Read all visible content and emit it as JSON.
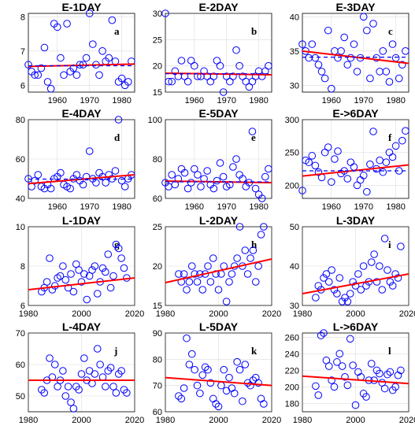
{
  "figure": {
    "colors": {
      "points": "#0000ff",
      "trend": "#ff0000",
      "reference": "#0000ff"
    }
  },
  "chart_data": [
    {
      "type": "scatter",
      "title": "E-1DAY",
      "letter": "a",
      "xlim": [
        1951,
        1984
      ],
      "ylim": [
        5.8,
        8.1
      ],
      "xticks": [
        1960,
        1970,
        1980
      ],
      "yticks": [
        6,
        7,
        8
      ],
      "x": [
        1951,
        1952,
        1953,
        1954,
        1955,
        1956,
        1957,
        1958,
        1959,
        1960,
        1961,
        1962,
        1963,
        1964,
        1965,
        1966,
        1967,
        1968,
        1969,
        1970,
        1971,
        1972,
        1973,
        1974,
        1975,
        1976,
        1977,
        1978,
        1979,
        1980,
        1981,
        1982,
        1983
      ],
      "y": [
        6.6,
        6.4,
        6.3,
        6.3,
        6.5,
        7.1,
        6.1,
        5.9,
        7.8,
        7.7,
        6.8,
        6.3,
        7.8,
        6.4,
        6.5,
        6.3,
        6.6,
        6.6,
        6.8,
        8.1,
        7.2,
        6.6,
        6.3,
        7.0,
        6.7,
        6.8,
        7.9,
        6.7,
        6.1,
        6.2,
        6.0,
        6.1,
        6.7
      ],
      "trend": [
        6.55,
        6.62
      ],
      "reference": [
        6.57,
        6.57
      ]
    },
    {
      "type": "scatter",
      "title": "E-2DAY",
      "letter": "b",
      "xlim": [
        1951,
        1984
      ],
      "ylim": [
        15,
        30
      ],
      "xticks": [
        1960,
        1970,
        1980
      ],
      "yticks": [
        15,
        20,
        25,
        30
      ],
      "x": [
        1951,
        1952,
        1953,
        1954,
        1955,
        1956,
        1957,
        1958,
        1959,
        1960,
        1961,
        1962,
        1963,
        1964,
        1965,
        1966,
        1967,
        1968,
        1969,
        1970,
        1971,
        1972,
        1973,
        1974,
        1975,
        1976,
        1977,
        1978,
        1979,
        1980,
        1981,
        1982,
        1983
      ],
      "y": [
        30,
        17,
        17,
        19,
        18,
        21,
        18,
        17,
        21,
        20,
        18,
        18,
        19,
        18,
        17,
        18,
        21,
        20,
        15,
        18,
        17,
        18,
        23,
        20,
        18,
        17,
        16,
        17,
        18,
        19,
        18,
        19,
        20
      ],
      "trend": [
        18.6,
        18.3
      ],
      "reference": [
        18.5,
        18.5
      ]
    },
    {
      "type": "scatter",
      "title": "E-3DAY",
      "letter": "c",
      "xlim": [
        1951,
        1984
      ],
      "ylim": [
        29,
        40.5
      ],
      "xticks": [
        1960,
        1970,
        1980
      ],
      "yticks": [
        30,
        35,
        40
      ],
      "x": [
        1951,
        1952,
        1953,
        1954,
        1955,
        1956,
        1957,
        1958,
        1959,
        1960,
        1961,
        1962,
        1963,
        1964,
        1965,
        1966,
        1967,
        1968,
        1969,
        1970,
        1971,
        1972,
        1973,
        1974,
        1975,
        1976,
        1977,
        1978,
        1979,
        1980,
        1981,
        1982,
        1983
      ],
      "y": [
        36,
        35,
        34,
        36,
        34,
        33,
        32,
        31,
        38,
        29.5,
        35,
        34,
        35,
        37,
        33,
        34,
        36,
        32,
        34,
        40,
        38,
        31,
        39,
        34,
        32,
        35,
        32,
        30.5,
        36,
        34,
        31,
        33,
        35
      ],
      "trend": [
        35.0,
        33.2
      ],
      "reference": [
        34.1,
        34.1
      ]
    },
    {
      "type": "scatter",
      "title": "E-4DAY",
      "letter": "d",
      "xlim": [
        1951,
        1984
      ],
      "ylim": [
        40,
        80
      ],
      "xticks": [
        1960,
        1970,
        1980
      ],
      "yticks": [
        40,
        60,
        80
      ],
      "x": [
        1951,
        1952,
        1953,
        1954,
        1955,
        1956,
        1957,
        1958,
        1959,
        1960,
        1961,
        1962,
        1963,
        1964,
        1965,
        1966,
        1967,
        1968,
        1969,
        1970,
        1971,
        1972,
        1973,
        1974,
        1975,
        1976,
        1977,
        1978,
        1979,
        1980,
        1981,
        1982,
        1983
      ],
      "y": [
        50,
        46,
        49,
        52,
        46,
        45,
        47,
        45,
        50,
        51,
        53,
        47,
        46,
        45,
        50,
        52,
        49,
        47,
        51,
        64,
        50,
        48,
        53,
        51,
        48,
        52,
        50,
        54,
        80,
        49,
        46,
        50,
        52
      ],
      "trend": [
        47.5,
        52.0
      ],
      "reference": [
        49.8,
        49.8
      ]
    },
    {
      "type": "scatter",
      "title": "E-5DAY",
      "letter": "e",
      "xlim": [
        1951,
        1984
      ],
      "ylim": [
        60,
        100
      ],
      "xticks": [
        1960,
        1970,
        1980
      ],
      "yticks": [
        60,
        80,
        100
      ],
      "x": [
        1951,
        1952,
        1953,
        1954,
        1955,
        1956,
        1957,
        1958,
        1959,
        1960,
        1961,
        1962,
        1963,
        1964,
        1965,
        1966,
        1967,
        1968,
        1969,
        1970,
        1971,
        1972,
        1973,
        1974,
        1975,
        1976,
        1977,
        1978,
        1979,
        1980,
        1981,
        1982,
        1983
      ],
      "y": [
        68,
        66,
        72,
        67,
        70,
        75,
        73,
        65,
        68,
        75,
        72,
        66,
        70,
        74,
        67,
        65,
        69,
        78,
        71,
        66,
        67,
        76,
        80,
        72,
        70,
        66,
        68,
        94,
        65,
        62,
        60,
        71,
        75
      ],
      "trend": [
        68.8,
        68.0
      ],
      "reference": [
        68.4,
        68.4
      ]
    },
    {
      "type": "scatter",
      "title": "E->6DAY",
      "letter": "f",
      "xlim": [
        1951,
        1984
      ],
      "ylim": [
        180,
        300
      ],
      "xticks": [
        1960,
        1970,
        1980
      ],
      "yticks": [
        200,
        250,
        300
      ],
      "x": [
        1951,
        1952,
        1953,
        1954,
        1955,
        1956,
        1957,
        1958,
        1959,
        1960,
        1961,
        1962,
        1963,
        1964,
        1965,
        1966,
        1967,
        1968,
        1969,
        1970,
        1971,
        1972,
        1973,
        1974,
        1975,
        1976,
        1977,
        1978,
        1979,
        1980,
        1981,
        1982,
        1983
      ],
      "y": [
        192,
        238,
        235,
        245,
        230,
        220,
        212,
        250,
        258,
        205,
        240,
        252,
        218,
        222,
        210,
        235,
        228,
        200,
        208,
        215,
        190,
        232,
        282,
        225,
        238,
        220,
        235,
        250,
        243,
        260,
        222,
        268,
        283
      ],
      "trend": [
        214,
        231
      ],
      "reference": [
        222,
        222
      ]
    },
    {
      "type": "scatter",
      "title": "L-1DAY",
      "letter": "g",
      "xlim": [
        1980,
        2020
      ],
      "ylim": [
        6,
        10
      ],
      "xticks": [
        1980,
        2000,
        2020
      ],
      "yticks": [
        6,
        8,
        10
      ],
      "x": [
        1985,
        1986,
        1987,
        1988,
        1989,
        1990,
        1991,
        1992,
        1993,
        1994,
        1995,
        1996,
        1997,
        1998,
        1999,
        2000,
        2001,
        2002,
        2003,
        2004,
        2005,
        2006,
        2007,
        2008,
        2009,
        2010,
        2011,
        2012,
        2013,
        2014,
        2015,
        2016,
        2017
      ],
      "y": [
        6.7,
        6.9,
        7.2,
        8.4,
        6.8,
        7.0,
        7.4,
        7.5,
        8.0,
        7.3,
        6.9,
        7.6,
        6.7,
        8.1,
        7.8,
        7.2,
        7.6,
        6.3,
        7.5,
        7.8,
        8.0,
        6.6,
        7.2,
        7.9,
        7.7,
        8.6,
        6.9,
        7.5,
        9.1,
        8.9,
        8.4,
        7.9,
        7.4
      ],
      "trend": [
        6.8,
        7.4
      ]
    },
    {
      "type": "scatter",
      "title": "L-2DAY",
      "letter": "h",
      "xlim": [
        1980,
        2020
      ],
      "ylim": [
        15,
        25
      ],
      "xticks": [
        1980,
        2000,
        2020
      ],
      "yticks": [
        15,
        20,
        25
      ],
      "x": [
        1985,
        1986,
        1987,
        1988,
        1989,
        1990,
        1991,
        1992,
        1993,
        1994,
        1995,
        1996,
        1997,
        1998,
        1999,
        2000,
        2001,
        2002,
        2003,
        2004,
        2005,
        2006,
        2007,
        2008,
        2009,
        2010,
        2011,
        2012,
        2013,
        2014,
        2015,
        2016,
        2017
      ],
      "y": [
        19,
        18,
        19,
        17,
        18,
        20,
        19,
        18,
        19,
        17,
        19,
        20,
        18,
        21,
        19,
        17,
        19,
        20,
        15.5,
        18,
        19,
        20,
        21,
        25,
        20,
        22,
        19,
        21,
        22,
        18,
        20,
        24,
        25
      ],
      "trend": [
        17.9,
        20.9
      ]
    },
    {
      "type": "scatter",
      "title": "L-3DAY",
      "letter": "i",
      "xlim": [
        1980,
        2020
      ],
      "ylim": [
        30,
        50
      ],
      "xticks": [
        1980,
        2000,
        2020
      ],
      "yticks": [
        30,
        40,
        50
      ],
      "x": [
        1985,
        1986,
        1987,
        1988,
        1989,
        1990,
        1991,
        1992,
        1993,
        1994,
        1995,
        1996,
        1997,
        1998,
        1999,
        2000,
        2001,
        2002,
        2003,
        2004,
        2005,
        2006,
        2007,
        2008,
        2009,
        2010,
        2011,
        2012,
        2013,
        2014,
        2015,
        2016,
        2017
      ],
      "y": [
        32,
        35,
        34,
        37,
        38,
        36,
        39,
        34,
        33,
        37,
        31,
        32,
        31,
        33,
        36,
        35,
        38,
        34,
        40,
        35,
        36,
        41,
        43,
        36,
        40,
        34,
        47,
        39,
        36,
        35,
        38,
        37,
        45
      ],
      "trend": [
        33.0,
        38.0
      ]
    },
    {
      "type": "scatter",
      "title": "L-4DAY",
      "letter": "j",
      "xlim": [
        1980,
        2020
      ],
      "ylim": [
        45,
        70
      ],
      "xticks": [
        1980,
        2000,
        2020
      ],
      "yticks": [
        50,
        60,
        70
      ],
      "x": [
        1985,
        1986,
        1987,
        1988,
        1989,
        1990,
        1991,
        1992,
        1993,
        1994,
        1995,
        1996,
        1997,
        1998,
        1999,
        2000,
        2001,
        2002,
        2003,
        2004,
        2005,
        2006,
        2007,
        2008,
        2009,
        2010,
        2011,
        2012,
        2013,
        2014,
        2015,
        2016,
        2017
      ],
      "y": [
        52,
        51,
        55,
        62,
        56,
        60,
        53,
        55,
        58,
        50,
        53,
        48,
        46,
        53,
        52,
        57,
        62,
        55,
        58,
        54,
        57,
        65,
        60,
        56,
        53,
        58,
        59,
        53,
        51,
        57,
        58,
        52,
        51
      ],
      "trend": [
        55.0,
        55.0
      ]
    },
    {
      "type": "scatter",
      "title": "L-5DAY",
      "letter": "k",
      "xlim": [
        1980,
        2020
      ],
      "ylim": [
        60,
        90
      ],
      "xticks": [
        1980,
        2000,
        2020
      ],
      "yticks": [
        60,
        70,
        80,
        90
      ],
      "x": [
        1985,
        1986,
        1987,
        1988,
        1989,
        1990,
        1991,
        1992,
        1993,
        1994,
        1995,
        1996,
        1997,
        1998,
        1999,
        2000,
        2001,
        2002,
        2003,
        2004,
        2005,
        2006,
        2007,
        2008,
        2009,
        2010,
        2011,
        2012,
        2013,
        2014,
        2015,
        2016,
        2017
      ],
      "y": [
        66,
        65,
        69,
        88,
        78,
        82,
        76,
        70,
        67,
        74,
        77,
        76,
        71,
        65,
        63,
        62,
        70,
        76,
        68,
        73,
        69,
        67,
        79,
        76,
        64,
        78,
        71,
        70,
        72,
        73,
        71,
        65,
        63
      ],
      "trend": [
        73.0,
        70.0
      ]
    },
    {
      "type": "scatter",
      "title": "L->6DAY",
      "letter": "l",
      "xlim": [
        1980,
        2020
      ],
      "ylim": [
        170,
        265
      ],
      "xticks": [
        1980,
        2000,
        2020
      ],
      "yticks": [
        180,
        200,
        220,
        240,
        260
      ],
      "x": [
        1985,
        1986,
        1987,
        1988,
        1989,
        1990,
        1991,
        1992,
        1993,
        1994,
        1995,
        1996,
        1997,
        1998,
        1999,
        2000,
        2001,
        2002,
        2003,
        2004,
        2005,
        2006,
        2007,
        2008,
        2009,
        2010,
        2011,
        2012,
        2013,
        2014,
        2015,
        2016,
        2017
      ],
      "y": [
        201,
        190,
        262,
        265,
        232,
        225,
        208,
        200,
        230,
        240,
        225,
        212,
        202,
        258,
        226,
        178,
        218,
        212,
        192,
        188,
        208,
        228,
        208,
        220,
        216,
        205,
        198,
        215,
        218,
        196,
        200,
        214,
        220
      ],
      "trend": [
        213,
        204
      ]
    }
  ]
}
